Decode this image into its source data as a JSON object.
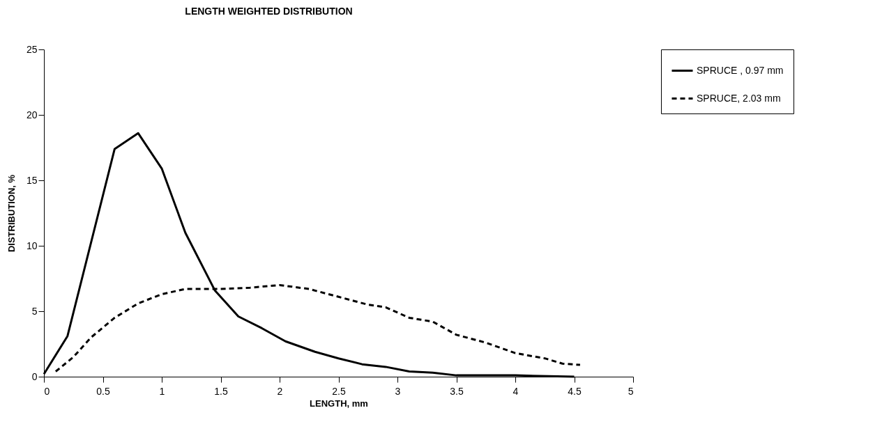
{
  "chart_data": {
    "type": "line",
    "title": "LENGTH WEIGHTED DISTRIBUTION",
    "xlabel": "LENGTH, mm",
    "ylabel": "DISTRIBUTION, %",
    "xlim": [
      0,
      5
    ],
    "xticks": [
      0,
      0.5,
      1,
      1.5,
      2,
      2.5,
      3,
      3.5,
      4,
      4.5,
      5
    ],
    "ylim": [
      0,
      25
    ],
    "yticks": [
      0,
      5,
      10,
      15,
      20,
      25
    ],
    "grid": false,
    "legend": "right",
    "series": [
      {
        "name": "SPRUCE , 0.97 mm",
        "color": "#000000",
        "line_style": "solid",
        "x": [
          0,
          0.2,
          0.6,
          0.8,
          1.0,
          1.2,
          1.45,
          1.65,
          1.85,
          2.05,
          2.3,
          2.5,
          2.7,
          2.9,
          3.1,
          3.3,
          3.5,
          4.0,
          4.5
        ],
        "values": [
          0.2,
          3.1,
          17.4,
          18.6,
          15.9,
          11,
          6.6,
          4.6,
          3.7,
          2.7,
          1.9,
          1.4,
          0.95,
          0.75,
          0.4,
          0.3,
          0.1,
          0.1,
          0
        ]
      },
      {
        "name": "SPRUCE, 2.03 mm",
        "color": "#000000",
        "line_style": "dashed",
        "x": [
          0.1,
          0.25,
          0.4,
          0.6,
          0.8,
          1.0,
          1.2,
          1.5,
          1.75,
          2.0,
          2.25,
          2.5,
          2.75,
          2.9,
          3.1,
          3.3,
          3.5,
          3.75,
          4.0,
          4.25,
          4.4,
          4.55
        ],
        "values": [
          0.4,
          1.5,
          3,
          4.5,
          5.6,
          6.3,
          6.7,
          6.7,
          6.8,
          7.0,
          6.7,
          6.1,
          5.5,
          5.3,
          4.5,
          4.2,
          3.2,
          2.6,
          1.8,
          1.4,
          1.0,
          0.9
        ]
      }
    ]
  }
}
